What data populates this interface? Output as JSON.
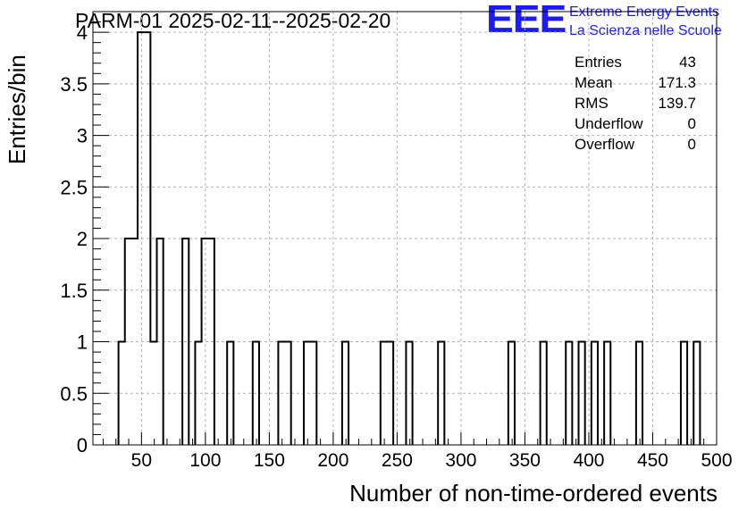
{
  "title": "PARM-01 2025-02-11--2025-02-20",
  "logo": {
    "mark": "EEE",
    "line1": "Extreme Energy Events",
    "line2": "La Scienza nelle Scuole",
    "color": "#1a1aff"
  },
  "stats": [
    {
      "label": "Entries",
      "value": "43"
    },
    {
      "label": "Mean",
      "value": "171.3"
    },
    {
      "label": "RMS",
      "value": "139.7"
    },
    {
      "label": "Underflow",
      "value": "0"
    },
    {
      "label": "Overflow",
      "value": "0"
    }
  ],
  "chart_data": {
    "type": "histogram",
    "xlabel": "Number of non-time-ordered events",
    "ylabel": "Entries/bin",
    "xlim": [
      12,
      500
    ],
    "ylim": [
      0,
      4.2
    ],
    "bin_width": 5,
    "xticks": [
      50,
      100,
      150,
      200,
      250,
      300,
      350,
      400,
      450,
      500
    ],
    "yticks": [
      0,
      0.5,
      1,
      1.5,
      2,
      2.5,
      3,
      3.5,
      4
    ],
    "ytick_labels": [
      "0",
      "0.5",
      "1",
      "1.5",
      "2",
      "2.5",
      "3",
      "3.5",
      "4"
    ],
    "grid": true,
    "line_color": "#000000",
    "bins": [
      {
        "x": 32,
        "y": 1
      },
      {
        "x": 37,
        "y": 2
      },
      {
        "x": 42,
        "y": 2
      },
      {
        "x": 47,
        "y": 4
      },
      {
        "x": 52,
        "y": 4
      },
      {
        "x": 57,
        "y": 1
      },
      {
        "x": 62,
        "y": 2
      },
      {
        "x": 82,
        "y": 2
      },
      {
        "x": 92,
        "y": 1
      },
      {
        "x": 97,
        "y": 2
      },
      {
        "x": 102,
        "y": 2
      },
      {
        "x": 117,
        "y": 1
      },
      {
        "x": 137,
        "y": 1
      },
      {
        "x": 157,
        "y": 1
      },
      {
        "x": 162,
        "y": 1
      },
      {
        "x": 177,
        "y": 1
      },
      {
        "x": 182,
        "y": 1
      },
      {
        "x": 207,
        "y": 1
      },
      {
        "x": 237,
        "y": 1
      },
      {
        "x": 242,
        "y": 1
      },
      {
        "x": 257,
        "y": 1
      },
      {
        "x": 282,
        "y": 1
      },
      {
        "x": 337,
        "y": 1
      },
      {
        "x": 362,
        "y": 1
      },
      {
        "x": 382,
        "y": 1
      },
      {
        "x": 392,
        "y": 1
      },
      {
        "x": 402,
        "y": 1
      },
      {
        "x": 412,
        "y": 1
      },
      {
        "x": 437,
        "y": 1
      },
      {
        "x": 472,
        "y": 1
      },
      {
        "x": 482,
        "y": 1
      }
    ]
  }
}
